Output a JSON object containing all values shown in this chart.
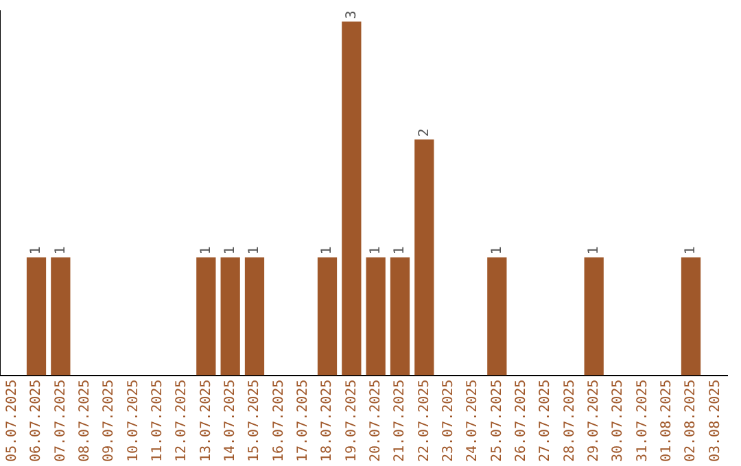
{
  "chart_data": {
    "type": "bar",
    "categories": [
      "05.07.2025",
      "06.07.2025",
      "07.07.2025",
      "08.07.2025",
      "09.07.2025",
      "10.07.2025",
      "11.07.2025",
      "12.07.2025",
      "13.07.2025",
      "14.07.2025",
      "15.07.2025",
      "16.07.2025",
      "17.07.2025",
      "18.07.2025",
      "19.07.2025",
      "20.07.2025",
      "21.07.2025",
      "22.07.2025",
      "23.07.2025",
      "24.07.2025",
      "25.07.2025",
      "26.07.2025",
      "27.07.2025",
      "28.07.2025",
      "29.07.2025",
      "30.07.2025",
      "31.07.2025",
      "01.08.2025",
      "02.08.2025",
      "03.08.2025"
    ],
    "values": [
      0,
      1,
      1,
      0,
      0,
      0,
      0,
      0,
      1,
      1,
      1,
      0,
      0,
      1,
      3,
      1,
      1,
      2,
      0,
      0,
      1,
      0,
      0,
      0,
      1,
      0,
      0,
      0,
      1,
      0
    ],
    "value_labels": [
      null,
      "1",
      "1",
      null,
      null,
      null,
      null,
      null,
      "1",
      "1",
      "1",
      null,
      null,
      "1",
      "3",
      "1",
      "1",
      "2",
      null,
      null,
      "1",
      null,
      null,
      null,
      "1",
      null,
      null,
      null,
      "1",
      null
    ],
    "color": "#a0582a",
    "grid": false,
    "legend": false
  }
}
